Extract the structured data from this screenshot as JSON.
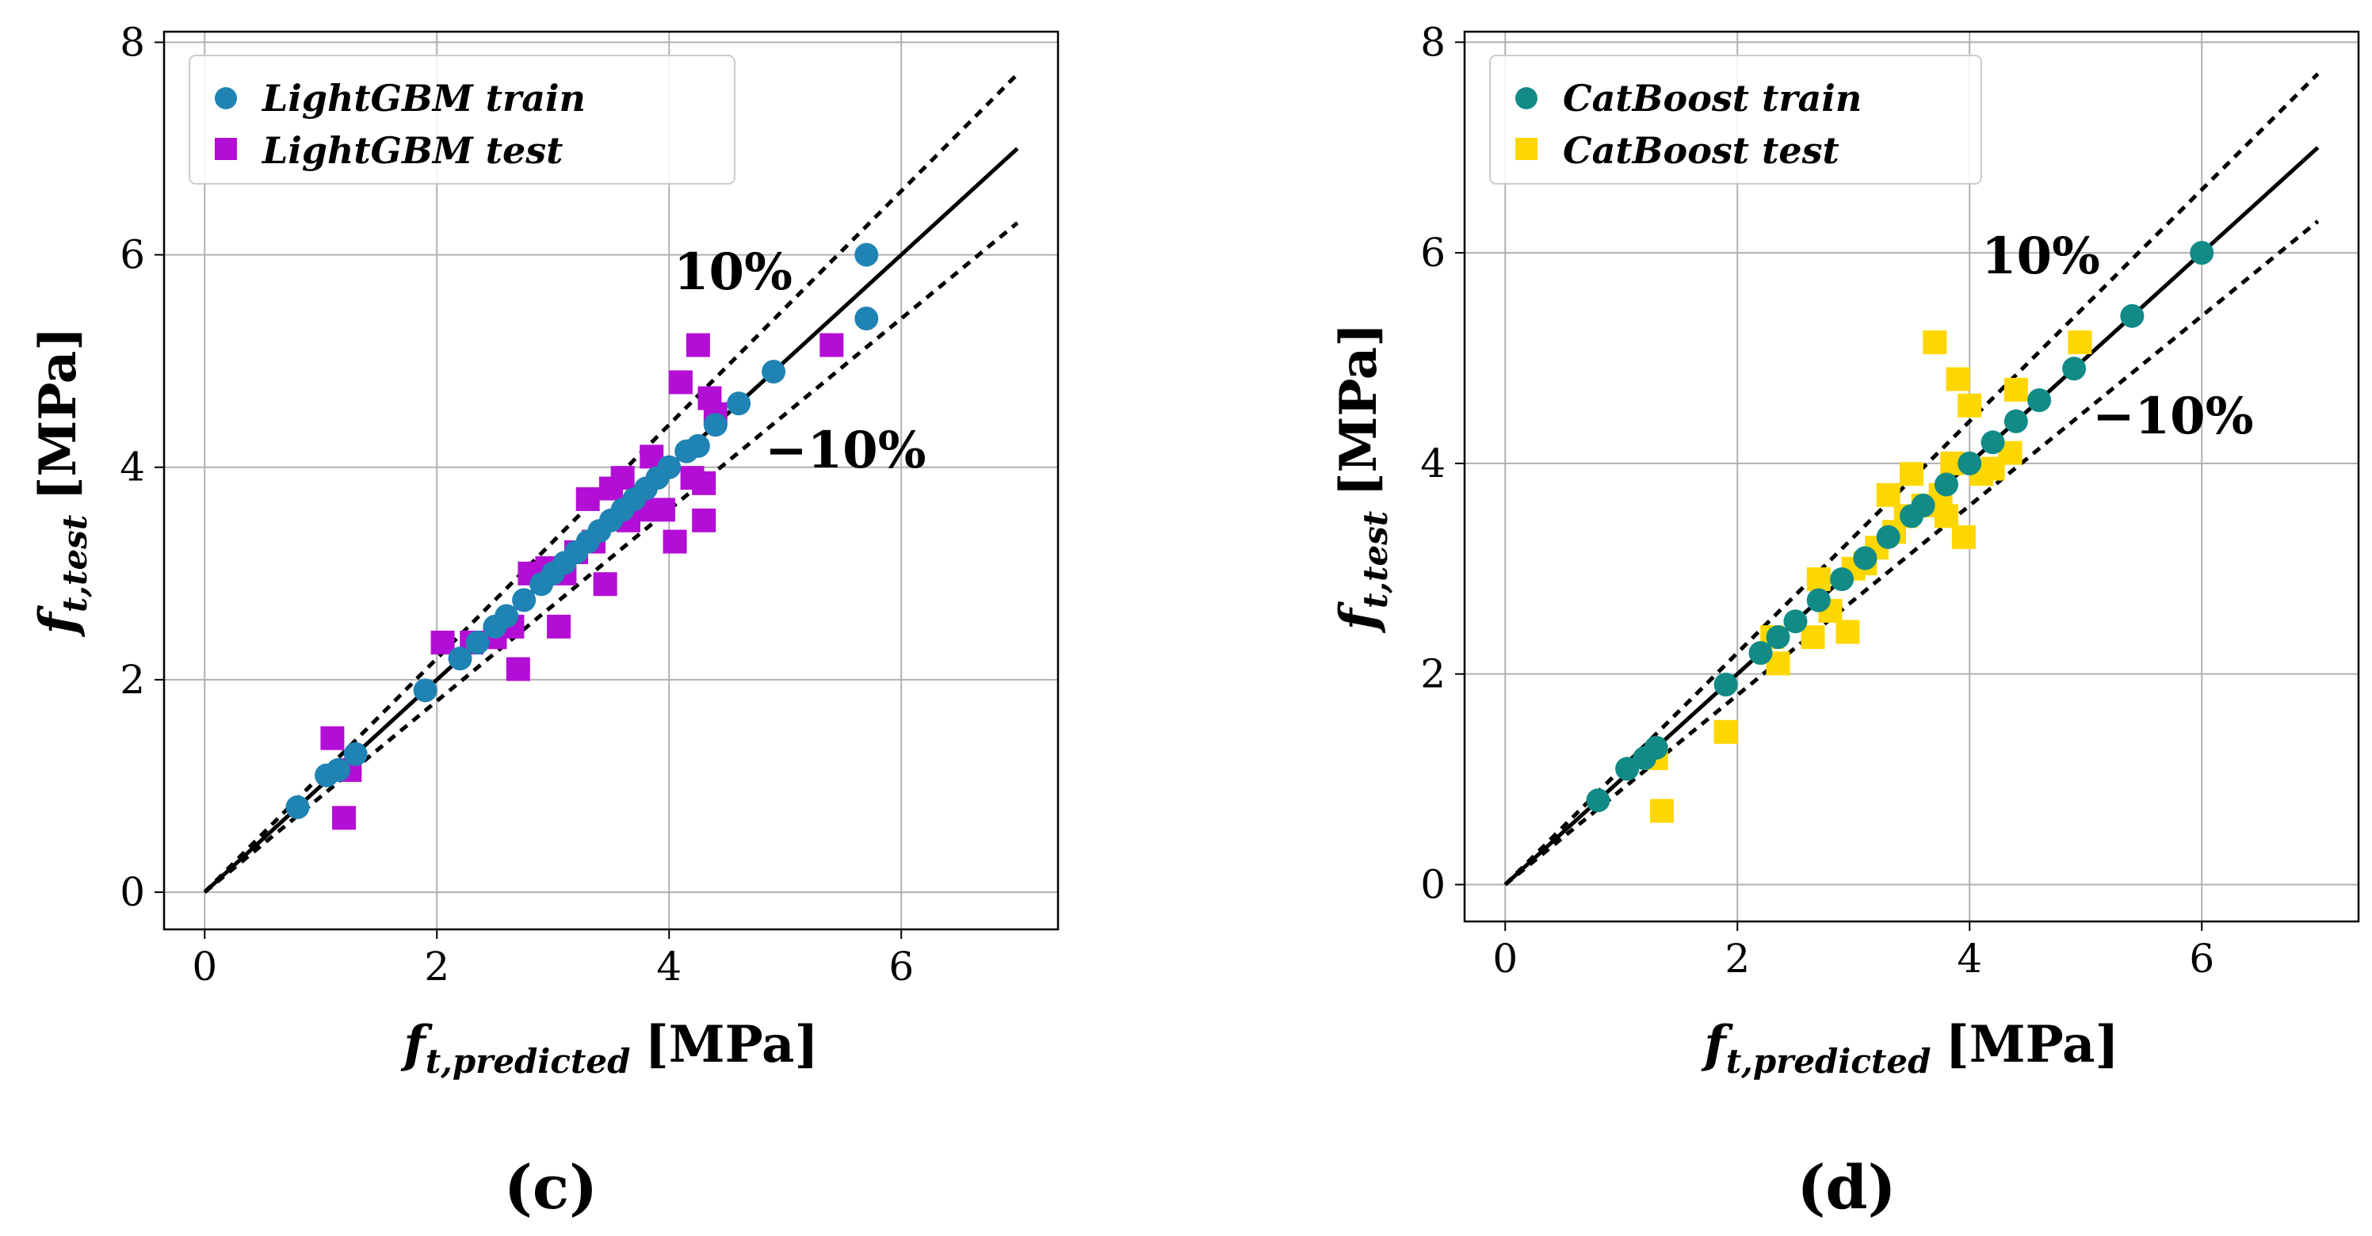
{
  "chart_data": [
    {
      "type": "scatter",
      "panel_label": "(c)",
      "xlabel": {
        "main": "f",
        "sub": "t,predicted",
        "unit": "[MPa]"
      },
      "ylabel": {
        "main": "f",
        "sub": "t,test",
        "unit": "[MPa]"
      },
      "xlim": [
        -0.35,
        7.35
      ],
      "ylim": [
        -0.35,
        8.1
      ],
      "xticks": [
        0,
        2,
        4,
        6
      ],
      "yticks": [
        0,
        2,
        4,
        6,
        8
      ],
      "grid": true,
      "legend_position": "top-left",
      "reference_line": {
        "x": [
          0,
          7
        ],
        "y": [
          0,
          7
        ]
      },
      "upper_band": {
        "x": [
          0,
          7
        ],
        "y": [
          0,
          7.7
        ],
        "label": "10%"
      },
      "lower_band": {
        "x": [
          0,
          7
        ],
        "y": [
          0,
          6.3
        ],
        "label": "−10%"
      },
      "series": [
        {
          "name": "LightGBM train",
          "marker": "circle",
          "color": "#1f83b4",
          "points": [
            [
              0.8,
              0.8
            ],
            [
              1.05,
              1.1
            ],
            [
              1.15,
              1.15
            ],
            [
              1.3,
              1.3
            ],
            [
              1.9,
              1.9
            ],
            [
              2.2,
              2.2
            ],
            [
              2.35,
              2.35
            ],
            [
              2.5,
              2.5
            ],
            [
              2.6,
              2.6
            ],
            [
              2.75,
              2.75
            ],
            [
              2.9,
              2.9
            ],
            [
              3.0,
              3.0
            ],
            [
              3.1,
              3.1
            ],
            [
              3.2,
              3.2
            ],
            [
              3.3,
              3.3
            ],
            [
              3.4,
              3.4
            ],
            [
              3.5,
              3.5
            ],
            [
              3.6,
              3.6
            ],
            [
              3.7,
              3.7
            ],
            [
              3.8,
              3.8
            ],
            [
              3.9,
              3.9
            ],
            [
              4.0,
              4.0
            ],
            [
              4.15,
              4.15
            ],
            [
              4.25,
              4.2
            ],
            [
              4.4,
              4.4
            ],
            [
              4.6,
              4.6
            ],
            [
              4.9,
              4.9
            ],
            [
              5.7,
              5.4
            ],
            [
              5.7,
              6.0
            ]
          ]
        },
        {
          "name": "LightGBM test",
          "marker": "square",
          "color": "#b30ed6",
          "points": [
            [
              1.1,
              1.45
            ],
            [
              1.2,
              0.7
            ],
            [
              1.25,
              1.15
            ],
            [
              2.05,
              2.35
            ],
            [
              2.3,
              2.35
            ],
            [
              2.5,
              2.4
            ],
            [
              2.65,
              2.5
            ],
            [
              2.7,
              2.1
            ],
            [
              2.8,
              3.0
            ],
            [
              2.95,
              3.05
            ],
            [
              3.05,
              2.5
            ],
            [
              3.1,
              3.0
            ],
            [
              3.2,
              3.2
            ],
            [
              3.3,
              3.7
            ],
            [
              3.35,
              3.3
            ],
            [
              3.45,
              2.9
            ],
            [
              3.5,
              3.8
            ],
            [
              3.6,
              3.9
            ],
            [
              3.65,
              3.5
            ],
            [
              3.75,
              3.6
            ],
            [
              3.85,
              4.1
            ],
            [
              3.95,
              3.6
            ],
            [
              4.05,
              3.3
            ],
            [
              4.1,
              4.8
            ],
            [
              4.2,
              3.9
            ],
            [
              4.25,
              5.15
            ],
            [
              4.3,
              3.5
            ],
            [
              4.3,
              3.85
            ],
            [
              4.35,
              4.65
            ],
            [
              4.4,
              4.5
            ],
            [
              5.4,
              5.15
            ]
          ]
        }
      ]
    },
    {
      "type": "scatter",
      "panel_label": "(d)",
      "xlabel": {
        "main": "f",
        "sub": "t,predicted",
        "unit": "[MPa]"
      },
      "ylabel": {
        "main": "f",
        "sub": "t,test",
        "unit": "[MPa]"
      },
      "xlim": [
        -0.35,
        7.35
      ],
      "ylim": [
        -0.35,
        8.1
      ],
      "xticks": [
        0,
        2,
        4,
        6
      ],
      "yticks": [
        0,
        2,
        4,
        6,
        8
      ],
      "grid": true,
      "legend_position": "top-left",
      "reference_line": {
        "x": [
          0,
          7
        ],
        "y": [
          0,
          7
        ]
      },
      "upper_band": {
        "x": [
          0,
          7
        ],
        "y": [
          0,
          7.7
        ],
        "label": "10%"
      },
      "lower_band": {
        "x": [
          0,
          7
        ],
        "y": [
          0,
          6.3
        ],
        "label": "−10%"
      },
      "series": [
        {
          "name": "CatBoost train",
          "marker": "circle",
          "color": "#128b87",
          "points": [
            [
              0.8,
              0.8
            ],
            [
              1.05,
              1.1
            ],
            [
              1.2,
              1.2
            ],
            [
              1.3,
              1.3
            ],
            [
              1.9,
              1.9
            ],
            [
              2.2,
              2.2
            ],
            [
              2.35,
              2.35
            ],
            [
              2.5,
              2.5
            ],
            [
              2.7,
              2.7
            ],
            [
              2.9,
              2.9
            ],
            [
              3.1,
              3.1
            ],
            [
              3.3,
              3.3
            ],
            [
              3.5,
              3.5
            ],
            [
              3.6,
              3.6
            ],
            [
              3.8,
              3.8
            ],
            [
              4.0,
              4.0
            ],
            [
              4.2,
              4.2
            ],
            [
              4.4,
              4.4
            ],
            [
              4.6,
              4.6
            ],
            [
              4.9,
              4.9
            ],
            [
              5.4,
              5.4
            ],
            [
              6.0,
              6.0
            ]
          ]
        },
        {
          "name": "CatBoost test",
          "marker": "square",
          "color": "#ffd700",
          "points": [
            [
              1.3,
              1.2
            ],
            [
              1.35,
              0.7
            ],
            [
              1.9,
              1.45
            ],
            [
              2.3,
              2.35
            ],
            [
              2.35,
              2.1
            ],
            [
              2.65,
              2.35
            ],
            [
              2.7,
              2.9
            ],
            [
              2.8,
              2.6
            ],
            [
              2.95,
              2.4
            ],
            [
              3.0,
              3.0
            ],
            [
              3.1,
              3.05
            ],
            [
              3.2,
              3.2
            ],
            [
              3.3,
              3.7
            ],
            [
              3.35,
              3.35
            ],
            [
              3.45,
              3.5
            ],
            [
              3.5,
              3.9
            ],
            [
              3.6,
              3.6
            ],
            [
              3.7,
              5.15
            ],
            [
              3.75,
              3.7
            ],
            [
              3.8,
              3.5
            ],
            [
              3.85,
              4.0
            ],
            [
              3.9,
              4.8
            ],
            [
              3.95,
              3.3
            ],
            [
              4.0,
              4.55
            ],
            [
              4.1,
              3.9
            ],
            [
              4.2,
              3.95
            ],
            [
              4.35,
              4.1
            ],
            [
              4.4,
              4.7
            ],
            [
              4.95,
              5.15
            ]
          ]
        }
      ]
    }
  ]
}
